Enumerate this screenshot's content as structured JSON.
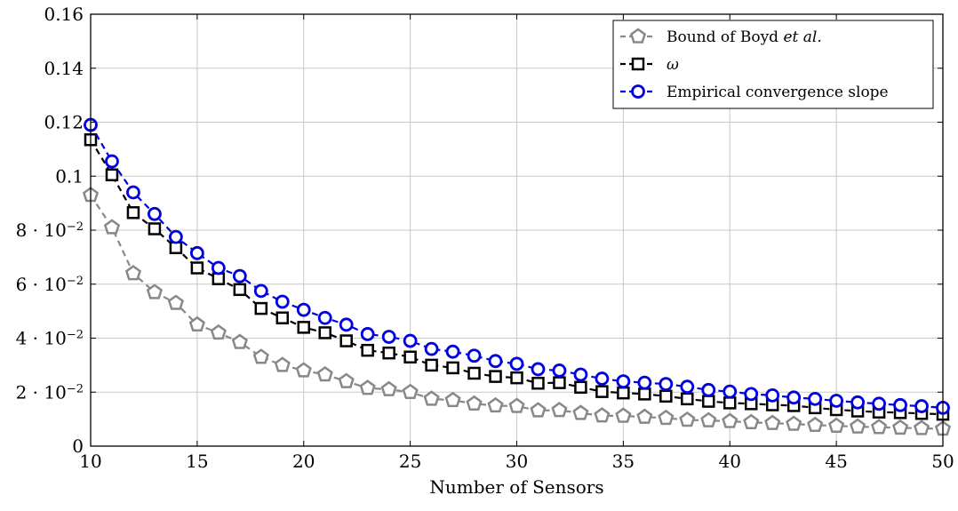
{
  "chart_data": {
    "type": "line",
    "title": "",
    "xlabel": "Number of Sensors",
    "ylabel": "",
    "xlim": [
      10,
      50
    ],
    "ylim": [
      0,
      0.16
    ],
    "grid": true,
    "legend_position": "top-right",
    "x_ticks": [
      {
        "value": 10,
        "label": "10"
      },
      {
        "value": 15,
        "label": "15"
      },
      {
        "value": 20,
        "label": "20"
      },
      {
        "value": 25,
        "label": "25"
      },
      {
        "value": 30,
        "label": "30"
      },
      {
        "value": 35,
        "label": "35"
      },
      {
        "value": 40,
        "label": "40"
      },
      {
        "value": 45,
        "label": "45"
      },
      {
        "value": 50,
        "label": "50"
      }
    ],
    "y_ticks": [
      {
        "value": 0,
        "label": "0"
      },
      {
        "value": 0.02,
        "label": "2 · 10",
        "exp": "−2"
      },
      {
        "value": 0.04,
        "label": "4 · 10",
        "exp": "−2"
      },
      {
        "value": 0.06,
        "label": "6 · 10",
        "exp": "−2"
      },
      {
        "value": 0.08,
        "label": "8 · 10",
        "exp": "−2"
      },
      {
        "value": 0.1,
        "label": "0.1"
      },
      {
        "value": 0.12,
        "label": "0.12"
      },
      {
        "value": 0.14,
        "label": "0.14"
      },
      {
        "value": 0.16,
        "label": "0.16"
      }
    ],
    "x": [
      10,
      11,
      12,
      13,
      14,
      15,
      16,
      17,
      18,
      19,
      20,
      21,
      22,
      23,
      24,
      25,
      26,
      27,
      28,
      29,
      30,
      31,
      32,
      33,
      34,
      35,
      36,
      37,
      38,
      39,
      40,
      41,
      42,
      43,
      44,
      45,
      46,
      47,
      48,
      49,
      50
    ],
    "series": [
      {
        "name": "Bound of Boyd et al.",
        "name_plain": "Bound of Boyd ",
        "name_italic": "et al.",
        "marker": "pentagon",
        "color": "#888888",
        "values": [
          0.093,
          0.081,
          0.064,
          0.057,
          0.053,
          0.045,
          0.042,
          0.0385,
          0.033,
          0.03,
          0.028,
          0.0265,
          0.024,
          0.0215,
          0.021,
          0.02,
          0.0175,
          0.017,
          0.0157,
          0.015,
          0.0148,
          0.0132,
          0.0133,
          0.0122,
          0.0113,
          0.0112,
          0.0108,
          0.0104,
          0.0097,
          0.0095,
          0.0092,
          0.0088,
          0.0085,
          0.0082,
          0.0078,
          0.0075,
          0.0072,
          0.007,
          0.0068,
          0.0066,
          0.0064
        ]
      },
      {
        "name": "ω",
        "marker": "square",
        "color": "#000000",
        "values": [
          0.1135,
          0.1005,
          0.0865,
          0.0805,
          0.0735,
          0.066,
          0.062,
          0.058,
          0.051,
          0.0475,
          0.044,
          0.042,
          0.039,
          0.0355,
          0.0345,
          0.033,
          0.03,
          0.029,
          0.027,
          0.0258,
          0.0253,
          0.0233,
          0.0235,
          0.0218,
          0.0202,
          0.0197,
          0.0193,
          0.0185,
          0.0175,
          0.0166,
          0.016,
          0.0157,
          0.0153,
          0.015,
          0.0142,
          0.0135,
          0.013,
          0.0126,
          0.0124,
          0.0121,
          0.0118
        ]
      },
      {
        "name": "Empirical convergence slope",
        "marker": "circle",
        "color": "#0000dd",
        "values": [
          0.119,
          0.1055,
          0.094,
          0.086,
          0.0775,
          0.0715,
          0.066,
          0.063,
          0.0575,
          0.0535,
          0.0505,
          0.0475,
          0.045,
          0.0415,
          0.0405,
          0.039,
          0.036,
          0.035,
          0.0335,
          0.0315,
          0.0305,
          0.0285,
          0.028,
          0.0265,
          0.025,
          0.024,
          0.0235,
          0.023,
          0.022,
          0.0208,
          0.0202,
          0.0193,
          0.0188,
          0.018,
          0.0175,
          0.0168,
          0.0162,
          0.0157,
          0.0152,
          0.0148,
          0.0142
        ]
      }
    ]
  }
}
